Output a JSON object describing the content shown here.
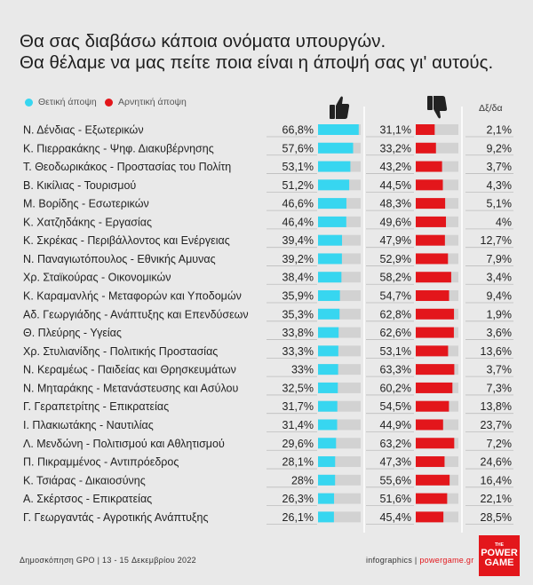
{
  "title_lines": [
    "Θα σας διαβάσω κάποια ονόματα υπουργών.",
    "Θα θέλαμε να μας πείτε ποια είναι η άποψή σας γι' αυτούς."
  ],
  "legend": {
    "positive": "Θετική άποψη",
    "negative": "Αρνητική άποψη"
  },
  "column_header": "Δξ/δα",
  "colors": {
    "positive": "#37d6f0",
    "negative": "#e3161b",
    "track": "#d2d2d2",
    "background": "#e9e9e9"
  },
  "icons": {
    "positive": "thumbs-up-icon",
    "negative": "thumbs-down-icon"
  },
  "footer": {
    "source": "Δημοσκόπηση GPO | 13 - 15 Δεκεμβρίου 2022",
    "credit": "infographics | ",
    "site": "powergame.gr"
  },
  "logo": {
    "small": "THE",
    "line1": "POWER",
    "line2": "GAME"
  },
  "chart_data": {
    "type": "bar",
    "orientation": "horizontal",
    "categories": [
      "Ν. Δένδιας - Εξωτερικών",
      "Κ. Πιερρακάκης - Ψηφ. Διακυβέρνησης",
      "Τ. Θεοδωρικάκος - Προστασίας του Πολίτη",
      "Β. Κικίλιας - Τουρισμού",
      "Μ. Βορίδης - Εσωτερικών",
      "Κ. Χατζηδάκης - Εργασίας",
      "Κ. Σκρέκας - Περιβάλλοντος και Ενέργειας",
      "Ν. Παναγιωτόπουλος - Εθνικής Αμυνας",
      "Χρ. Σταϊκούρας - Οικονομικών",
      "Κ. Καραμανλής - Μεταφορών και Υποδομών",
      "Αδ. Γεωργιάδης - Ανάπτυξης και Επενδύσεων",
      "Θ. Πλεύρης - Υγείας",
      "Χρ. Στυλιανίδης - Πολιτικής Προστασίας",
      "Ν. Κεραμέως - Παιδείας και Θρησκευμάτων",
      "Ν. Μηταράκης - Μετανάστευσης και Ασύλου",
      "Γ. Γεραπετρίτης - Επικρατείας",
      "Ι. Πλακιωτάκης - Ναυτιλίας",
      "Λ. Μενδώνη - Πολιτισμού και Αθλητισμού",
      "Π. Πικραμμένος - Αντιπρόεδρος",
      "Κ. Τσιάρας - Δικαιοσύνης",
      "Α. Σκέρτσος - Επικρατείας",
      "Γ. Γεωργαντάς - Αγροτικής Ανάπτυξης"
    ],
    "series": [
      {
        "name": "Θετική άποψη",
        "values": [
          66.8,
          57.6,
          53.1,
          51.2,
          46.6,
          46.4,
          39.4,
          39.2,
          38.4,
          35.9,
          35.3,
          33.8,
          33.3,
          33,
          32.5,
          31.7,
          31.4,
          29.6,
          28.1,
          28,
          26.3,
          26.1
        ],
        "labels": [
          "66,8%",
          "57,6%",
          "53,1%",
          "51,2%",
          "46,6%",
          "46,4%",
          "39,4%",
          "39,2%",
          "38,4%",
          "35,9%",
          "35,3%",
          "33,8%",
          "33,3%",
          "33%",
          "32,5%",
          "31,7%",
          "31,4%",
          "29,6%",
          "28,1%",
          "28%",
          "26,3%",
          "26,1%"
        ]
      },
      {
        "name": "Αρνητική άποψη",
        "values": [
          31.1,
          33.2,
          43.2,
          44.5,
          48.3,
          49.6,
          47.9,
          52.9,
          58.2,
          54.7,
          62.8,
          62.6,
          53.1,
          63.3,
          60.2,
          54.5,
          44.9,
          63.2,
          47.3,
          55.6,
          51.6,
          45.4
        ],
        "labels": [
          "31,1%",
          "33,2%",
          "43,2%",
          "44,5%",
          "48,3%",
          "49,6%",
          "47,9%",
          "52,9%",
          "58,2%",
          "54,7%",
          "62,8%",
          "62,6%",
          "53,1%",
          "63,3%",
          "60,2%",
          "54,5%",
          "44,9%",
          "63,2%",
          "47,3%",
          "55,6%",
          "51,6%",
          "45,4%"
        ]
      },
      {
        "name": "Δξ/δα",
        "values": [
          2.1,
          9.2,
          3.7,
          4.3,
          5.1,
          4,
          12.7,
          7.9,
          3.4,
          9.4,
          1.9,
          3.6,
          13.6,
          3.7,
          7.3,
          13.8,
          23.7,
          7.2,
          24.6,
          16.4,
          22.1,
          28.5
        ],
        "labels": [
          "2,1%",
          "9,2%",
          "3,7%",
          "4,3%",
          "5,1%",
          "4%",
          "12,7%",
          "7,9%",
          "3,4%",
          "9,4%",
          "1,9%",
          "3,6%",
          "13,6%",
          "3,7%",
          "7,3%",
          "13,8%",
          "23,7%",
          "7,2%",
          "24,6%",
          "16,4%",
          "22,1%",
          "28,5%"
        ]
      }
    ],
    "xlim": [
      0,
      70
    ],
    "legend_position": "top-left"
  }
}
